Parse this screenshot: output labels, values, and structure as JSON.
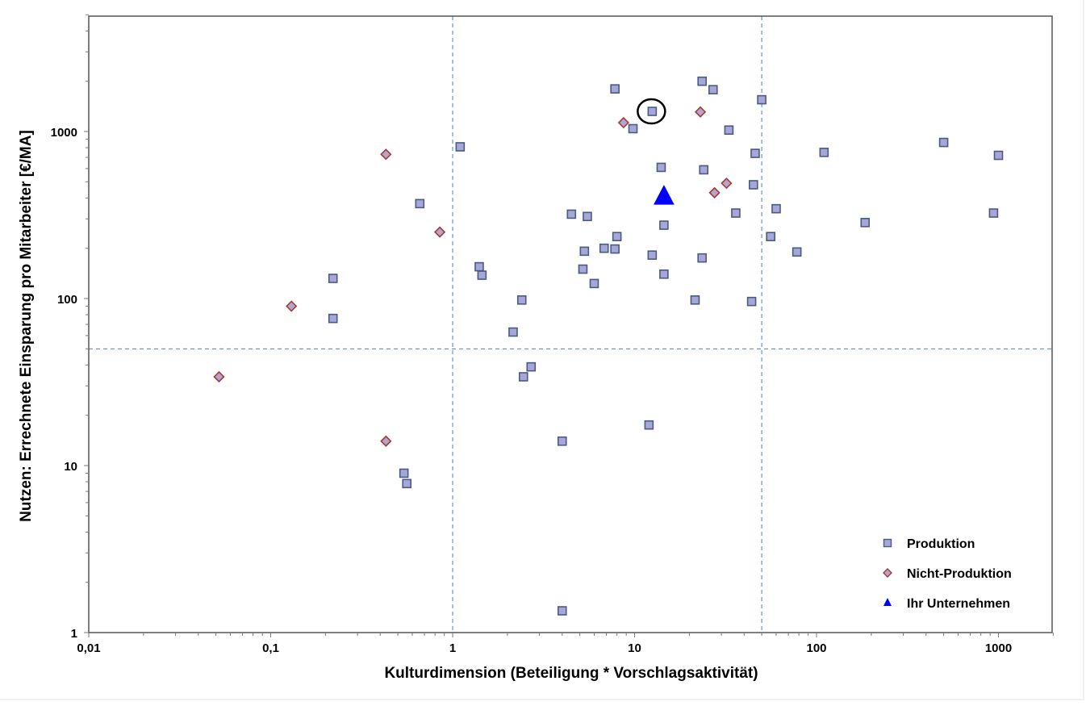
{
  "chart_data": {
    "type": "scatter",
    "title": "",
    "xlabel": "Kulturdimension (Beteiligung * Vorschlagsaktivität)",
    "ylabel": "Nutzen: Errechnete Einsparung pro Mitarbeiter [€/MA]",
    "xscale": "log",
    "yscale": "log",
    "xlim": [
      0.01,
      2000
    ],
    "ylim": [
      1,
      5000
    ],
    "grid": false,
    "x_ticks": [
      0.01,
      0.1,
      1,
      10,
      100,
      1000
    ],
    "x_tick_labels": [
      "0,01",
      "0,1",
      "1",
      "10",
      "100",
      "1000"
    ],
    "y_ticks": [
      1,
      10,
      100,
      1000
    ],
    "y_tick_labels": [
      "1",
      "10",
      "100",
      "1000"
    ],
    "reference_lines": {
      "vertical": [
        1,
        50
      ],
      "horizontal": [
        50
      ],
      "style": "dashed",
      "color": "#4f81bd"
    },
    "legend_position": "lower-right",
    "annotations": [
      {
        "type": "hand-drawn-circle",
        "x": 12.5,
        "y": 1320,
        "color": "#000000"
      }
    ],
    "series": [
      {
        "name": "Produktion",
        "marker": "square",
        "fill": "#a6a6d8",
        "stroke": "#4a5a80",
        "points": [
          [
            7.8,
            1800
          ],
          [
            12.5,
            1320
          ],
          [
            23.5,
            2000
          ],
          [
            27,
            1780
          ],
          [
            50,
            1550
          ],
          [
            9.8,
            1040
          ],
          [
            33,
            1020
          ],
          [
            1.1,
            810
          ],
          [
            46,
            740
          ],
          [
            110,
            750
          ],
          [
            500,
            860
          ],
          [
            1000,
            720
          ],
          [
            14,
            610
          ],
          [
            24,
            590
          ],
          [
            45,
            480
          ],
          [
            0.66,
            370
          ],
          [
            4.5,
            320
          ],
          [
            5.5,
            310
          ],
          [
            36,
            325
          ],
          [
            60,
            345
          ],
          [
            940,
            325
          ],
          [
            14.5,
            275
          ],
          [
            185,
            285
          ],
          [
            8,
            235
          ],
          [
            56,
            235
          ],
          [
            5.3,
            192
          ],
          [
            6.8,
            200
          ],
          [
            7.8,
            198
          ],
          [
            12.5,
            182
          ],
          [
            23.5,
            175
          ],
          [
            78,
            190
          ],
          [
            1.4,
            155
          ],
          [
            5.2,
            150
          ],
          [
            1.45,
            138
          ],
          [
            14.5,
            140
          ],
          [
            0.22,
            132
          ],
          [
            6,
            123
          ],
          [
            2.4,
            98
          ],
          [
            21.5,
            98
          ],
          [
            44,
            96
          ],
          [
            0.22,
            76
          ],
          [
            2.15,
            63
          ],
          [
            2.7,
            39
          ],
          [
            2.45,
            34
          ],
          [
            12,
            17.5
          ],
          [
            4,
            14
          ],
          [
            0.54,
            9
          ],
          [
            0.56,
            7.8
          ],
          [
            4,
            1.35
          ]
        ]
      },
      {
        "name": "Nicht-Produktion",
        "marker": "diamond",
        "fill": "#b8a4c8",
        "stroke": "#a03c3c",
        "points": [
          [
            8.7,
            1130
          ],
          [
            23,
            1310
          ],
          [
            0.43,
            730
          ],
          [
            32,
            490
          ],
          [
            27.5,
            430
          ],
          [
            0.85,
            250
          ],
          [
            0.13,
            90
          ],
          [
            0.052,
            34
          ],
          [
            0.43,
            14
          ]
        ]
      },
      {
        "name": "Ihr Unternehmen",
        "marker": "triangle",
        "fill": "#0000ff",
        "stroke": "#0000ff",
        "points": [
          [
            14.5,
            410
          ]
        ]
      }
    ]
  }
}
